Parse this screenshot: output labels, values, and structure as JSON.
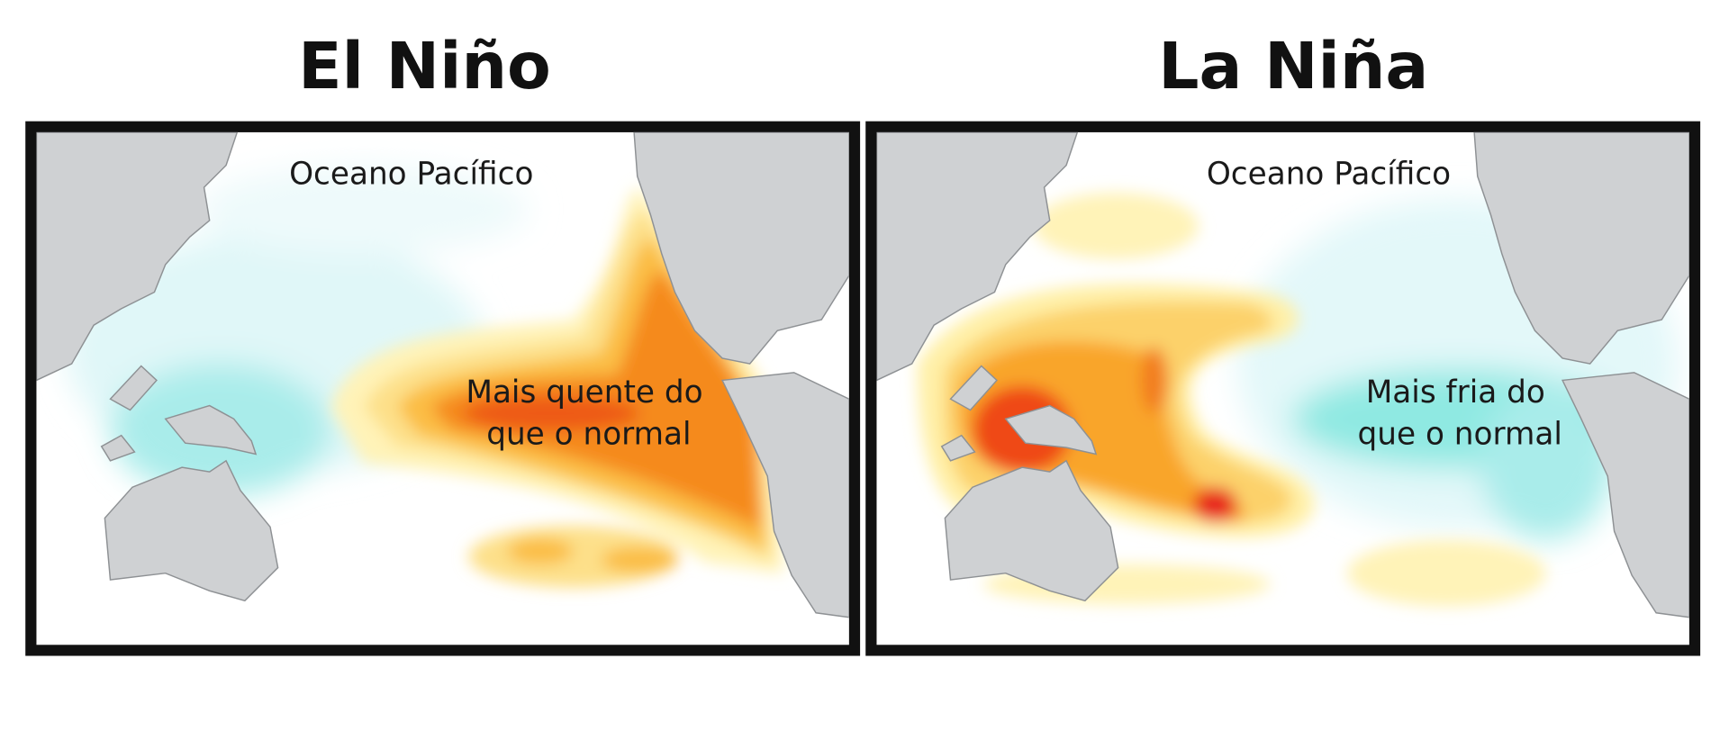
{
  "panels": [
    {
      "title": "El Niño",
      "ocean_label": "Oceano Pacífico",
      "anomaly_label": [
        "Mais quente do",
        "que o normal"
      ]
    },
    {
      "title": "La Niña",
      "ocean_label": "Oceano Pacífico",
      "anomaly_label": [
        "Mais fria do",
        "que o normal"
      ]
    }
  ]
}
